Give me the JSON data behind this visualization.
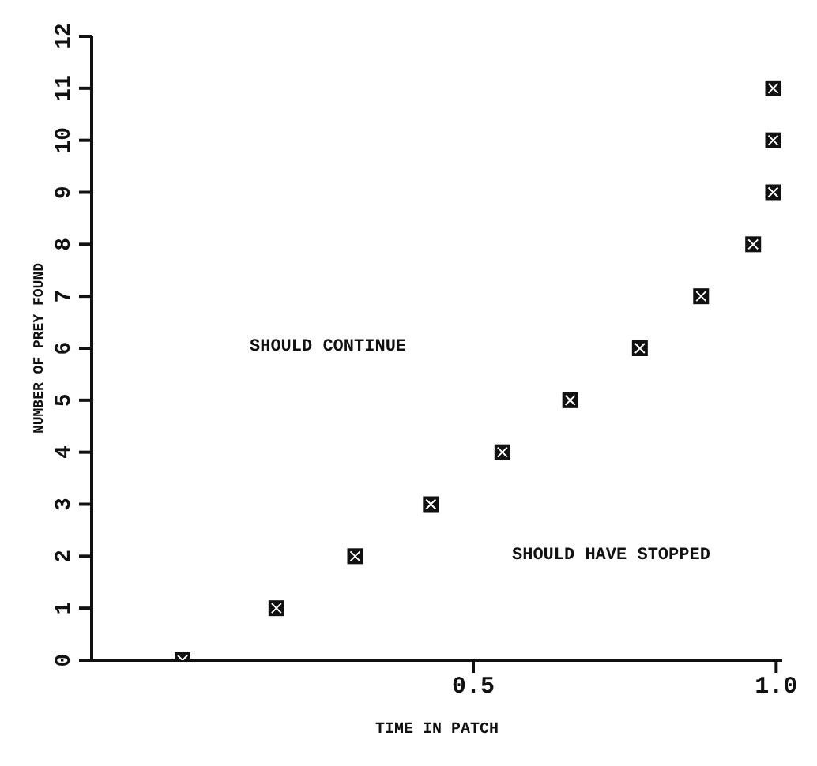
{
  "chart_data": {
    "type": "scatter",
    "xlabel": "TIME IN PATCH",
    "ylabel": "NUMBER OF PREY FOUND",
    "x": [
      0.02,
      0.175,
      0.305,
      0.43,
      0.548,
      0.66,
      0.775,
      0.876,
      0.962,
      0.995,
      0.995,
      0.995
    ],
    "values": [
      0,
      1,
      2,
      3,
      4,
      5,
      6,
      7,
      8,
      9,
      10,
      11
    ],
    "color": "#111111",
    "marker": "square",
    "xlim": [
      -0.13,
      1.01
    ],
    "xticks": [
      0.5,
      {
        "value": 1,
        "label": "1.0"
      }
    ],
    "ylim": [
      0,
      12
    ],
    "yticks": [
      0,
      1,
      2,
      3,
      4,
      5,
      6,
      7,
      8,
      9,
      10,
      11,
      12
    ],
    "annotations": [
      "SHOULD CONTINUE",
      "SHOULD HAVE STOPPED"
    ]
  }
}
